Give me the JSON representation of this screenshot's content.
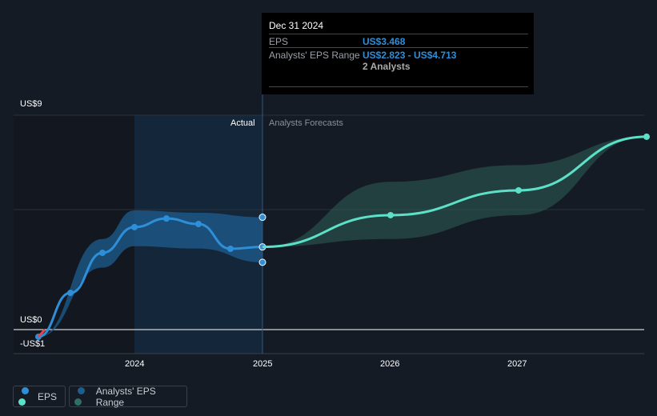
{
  "chart_data": {
    "type": "line",
    "title": "",
    "xlabel": "",
    "ylabel": "",
    "xlim": [
      2023.2,
      2028.0
    ],
    "ylim": [
      -1,
      9
    ],
    "y_tick_labels": [
      "US$9",
      "US$0",
      "-US$1"
    ],
    "x_tick_labels": [
      "2024",
      "2025",
      "2026",
      "2027"
    ],
    "section_labels": {
      "actual": "Actual",
      "forecast": "Analysts Forecasts"
    },
    "series": [
      {
        "name": "EPS",
        "kind": "actual",
        "x": [
          2023.25,
          2023.5,
          2023.75,
          2024.0,
          2024.25,
          2024.5,
          2024.75,
          2025.0
        ],
        "y": [
          -0.3,
          1.54,
          3.22,
          4.3,
          4.66,
          4.43,
          3.39,
          3.468
        ],
        "color": "#2e8fd8"
      },
      {
        "name": "EPS",
        "kind": "forecast",
        "x": [
          2025.0,
          2026.0,
          2027.0,
          2028.0
        ],
        "y": [
          3.468,
          4.8,
          5.84,
          8.09
        ],
        "color": "#5de0c8"
      }
    ],
    "range": [
      {
        "name": "Analysts' EPS Range",
        "kind": "actual",
        "x": [
          2023.25,
          2023.75,
          2024.0,
          2024.5,
          2025.0
        ],
        "low": [
          -0.3,
          2.6,
          3.5,
          3.4,
          2.823
        ],
        "high": [
          -0.3,
          3.8,
          5.0,
          4.9,
          4.713
        ],
        "color": "#1e5d8f"
      },
      {
        "name": "Analysts' EPS Range",
        "kind": "forecast",
        "x": [
          2025.0,
          2026.0,
          2027.0,
          2028.0
        ],
        "low": [
          3.468,
          3.8,
          4.8,
          8.09
        ],
        "high": [
          3.468,
          6.2,
          6.9,
          8.09
        ],
        "color": "#2e5e58"
      }
    ],
    "legend": [
      "EPS",
      "Analysts' EPS Range"
    ],
    "legend_position": "bottom-left"
  },
  "tooltip": {
    "date": "Dec 31 2024",
    "eps_label": "EPS",
    "eps_value": "US$3.468",
    "range_label": "Analysts' EPS Range",
    "range_value": "US$2.823 - US$4.713",
    "analysts": "2 Analysts"
  }
}
